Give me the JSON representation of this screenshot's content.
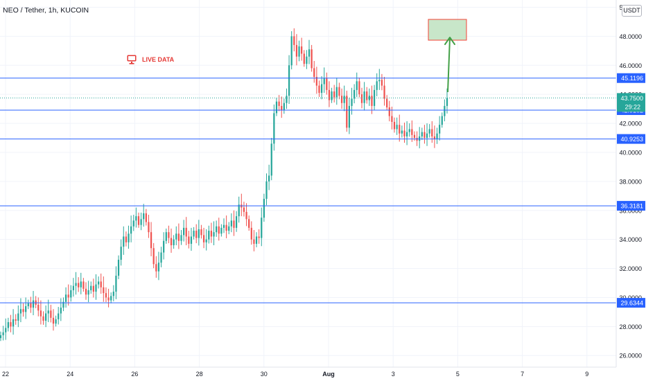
{
  "header": {
    "title": "NEO / Tether, 1h, KUCOIN",
    "currency": "USDT"
  },
  "annotation": {
    "live_label": "LIVE DATA",
    "icon": "monitor-icon"
  },
  "colors": {
    "up": "#26a69a",
    "down": "#ef5350",
    "level_line": "#2962ff",
    "arrow": "#43a047",
    "target_fill": "#c8e6c9",
    "target_border": "#f44336",
    "price_badge": "#26a69a"
  },
  "chart_data": {
    "type": "candlestick",
    "title": "NEO / Tether, 1h, KUCOIN",
    "ylim": [
      25.2,
      50.5
    ],
    "y_ticks": [
      "26.0000",
      "28.0000",
      "30.0000",
      "32.0000",
      "34.0000",
      "36.0000",
      "38.0000",
      "40.0000",
      "42.0000",
      "44.0000",
      "46.0000",
      "48.0000",
      "50.0000"
    ],
    "x_ticks": [
      "22",
      "24",
      "26",
      "28",
      "30",
      "Aug",
      "3",
      "5",
      "7",
      "9"
    ],
    "grid": true,
    "levels": [
      45.1196,
      42.9102,
      40.9253,
      36.3181,
      29.6344
    ],
    "levels_text": [
      "45.1196",
      "42.9102",
      "40.9253",
      "36.3181",
      "29.6344"
    ],
    "last_price": 43.75,
    "last_price_text": "43.7500",
    "countdown": "29:22",
    "candle_closes": [
      27.4,
      27.6,
      27.9,
      28.3,
      28.0,
      28.5,
      28.4,
      28.9,
      29.2,
      29.0,
      29.4,
      29.6,
      29.3,
      29.8,
      29.5,
      29.1,
      28.7,
      28.4,
      28.9,
      29.1,
      28.6,
      28.2,
      28.5,
      28.9,
      29.3,
      29.7,
      30.2,
      30.0,
      30.5,
      30.8,
      31.0,
      30.7,
      31.1,
      30.6,
      30.2,
      30.5,
      30.8,
      30.4,
      30.9,
      31.1,
      30.7,
      30.3,
      30.0,
      29.8,
      30.1,
      30.4,
      31.5,
      32.6,
      33.5,
      34.2,
      33.8,
      34.4,
      34.9,
      35.3,
      35.6,
      35.0,
      35.4,
      35.8,
      35.2,
      34.5,
      33.4,
      32.3,
      31.8,
      32.4,
      33.1,
      33.9,
      34.5,
      34.1,
      33.6,
      34.0,
      34.4,
      33.9,
      34.3,
      34.8,
      34.2,
      33.7,
      34.2,
      34.6,
      34.1,
      34.7,
      34.3,
      33.8,
      34.0,
      34.6,
      34.2,
      34.5,
      34.9,
      34.4,
      34.8,
      35.0,
      34.6,
      34.9,
      35.3,
      34.8,
      35.6,
      36.4,
      36.2,
      35.9,
      35.4,
      34.8,
      34.0,
      33.7,
      34.2,
      34.1,
      35.5,
      36.8,
      38.0,
      38.4,
      40.6,
      42.7,
      43.5,
      43.2,
      42.9,
      43.4,
      43.9,
      46.0,
      48.0,
      47.4,
      46.6,
      47.3,
      46.8,
      46.1,
      46.6,
      47.1,
      45.8,
      45.2,
      44.6,
      44.1,
      44.7,
      45.1,
      44.3,
      43.6,
      44.2,
      43.8,
      44.5,
      43.9,
      43.4,
      43.9,
      41.7,
      43.2,
      43.7,
      44.3,
      44.9,
      44.0,
      43.4,
      44.2,
      43.6,
      43.9,
      43.2,
      44.3,
      44.9,
      45.0,
      44.6,
      43.7,
      43.1,
      42.5,
      42.1,
      41.6,
      41.9,
      41.3,
      41.5,
      41.1,
      41.4,
      41.6,
      41.2,
      41.0,
      40.8,
      41.1,
      41.4,
      41.0,
      41.3,
      41.6,
      41.1,
      40.9,
      41.3,
      41.9,
      42.5,
      43.2,
      43.75
    ]
  }
}
